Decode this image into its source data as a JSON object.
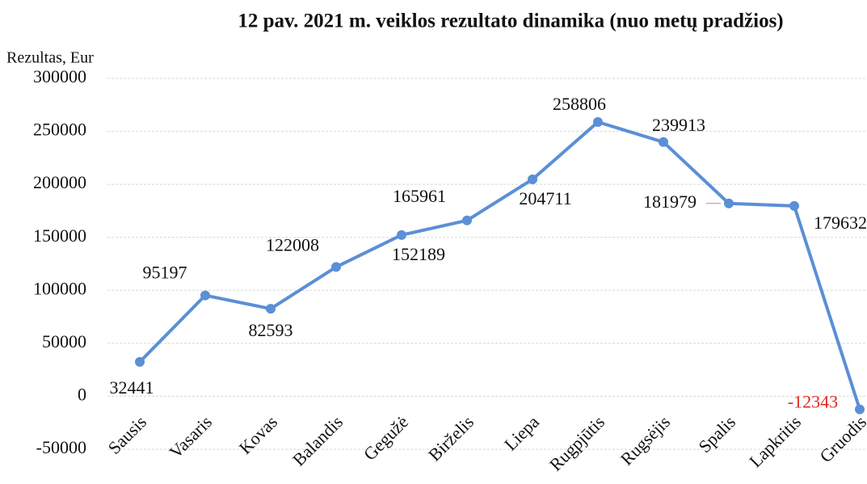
{
  "chart_data": {
    "type": "line",
    "title": "12 pav. 2021 m. veiklos rezultato dinamika (nuo metų pradžios)",
    "y_label": "Rezultas, Eur",
    "categories": [
      "Sausis",
      "Vasaris",
      "Kovas",
      "Balandis",
      "Gegužė",
      "Birželis",
      "Liepa",
      "Rugpjūtis",
      "Rugsėjis",
      "Spalis",
      "Lapkritis",
      "Gruodis"
    ],
    "series": [
      {
        "name": "Rezultas, Eur",
        "color": "#5b8fd6",
        "values": [
          32441,
          95197,
          82593,
          122008,
          152189,
          165961,
          204711,
          258806,
          239913,
          181979,
          179632,
          -12343
        ]
      }
    ],
    "negative_color": "#e8261c",
    "ylim": [
      -50000,
      300000
    ],
    "yticks": [
      -50000,
      0,
      50000,
      100000,
      150000,
      200000,
      250000,
      300000
    ],
    "grid": true
  }
}
